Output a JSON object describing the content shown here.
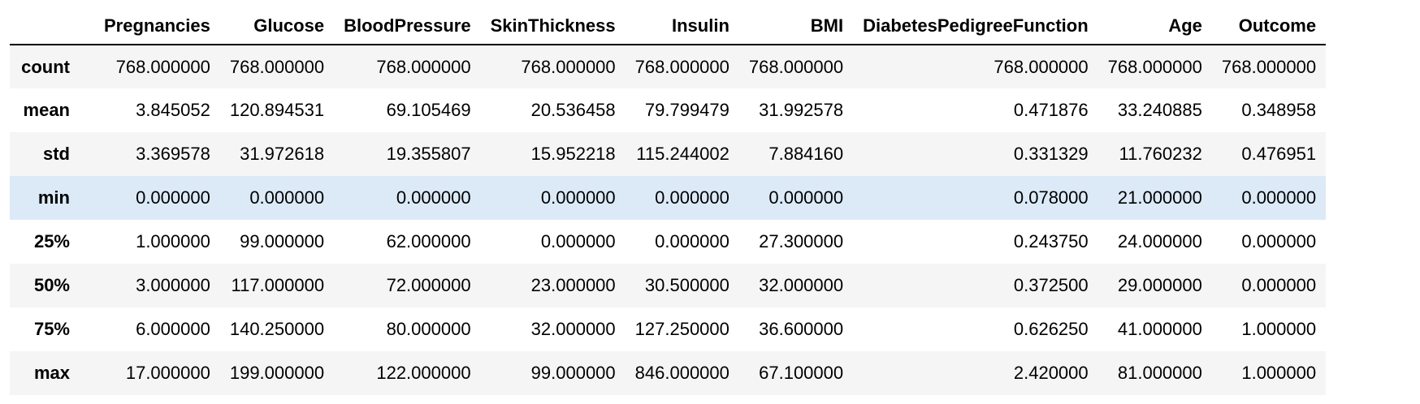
{
  "table": {
    "columns": [
      "",
      "Pregnancies",
      "Glucose",
      "BloodPressure",
      "SkinThickness",
      "Insulin",
      "BMI",
      "DiabetesPedigreeFunction",
      "Age",
      "Outcome"
    ],
    "rows": [
      {
        "label": "count",
        "values": [
          "768.000000",
          "768.000000",
          "768.000000",
          "768.000000",
          "768.000000",
          "768.000000",
          "768.000000",
          "768.000000",
          "768.000000"
        ]
      },
      {
        "label": "mean",
        "values": [
          "3.845052",
          "120.894531",
          "69.105469",
          "20.536458",
          "79.799479",
          "31.992578",
          "0.471876",
          "33.240885",
          "0.348958"
        ]
      },
      {
        "label": "std",
        "values": [
          "3.369578",
          "31.972618",
          "19.355807",
          "15.952218",
          "115.244002",
          "7.884160",
          "0.331329",
          "11.760232",
          "0.476951"
        ]
      },
      {
        "label": "min",
        "values": [
          "0.000000",
          "0.000000",
          "0.000000",
          "0.000000",
          "0.000000",
          "0.000000",
          "0.078000",
          "21.000000",
          "0.000000"
        ]
      },
      {
        "label": "25%",
        "values": [
          "1.000000",
          "99.000000",
          "62.000000",
          "0.000000",
          "0.000000",
          "27.300000",
          "0.243750",
          "24.000000",
          "0.000000"
        ]
      },
      {
        "label": "50%",
        "values": [
          "3.000000",
          "117.000000",
          "72.000000",
          "23.000000",
          "30.500000",
          "32.000000",
          "0.372500",
          "29.000000",
          "0.000000"
        ]
      },
      {
        "label": "75%",
        "values": [
          "6.000000",
          "140.250000",
          "80.000000",
          "32.000000",
          "127.250000",
          "36.600000",
          "0.626250",
          "41.000000",
          "1.000000"
        ]
      },
      {
        "label": "max",
        "values": [
          "17.000000",
          "199.000000",
          "122.000000",
          "99.000000",
          "846.000000",
          "67.100000",
          "2.420000",
          "81.000000",
          "1.000000"
        ]
      }
    ],
    "highlighted_row": "min",
    "colors": {
      "stripe": "#f5f5f5",
      "highlight": "#dceaf8",
      "header_rule": "#000000"
    }
  }
}
